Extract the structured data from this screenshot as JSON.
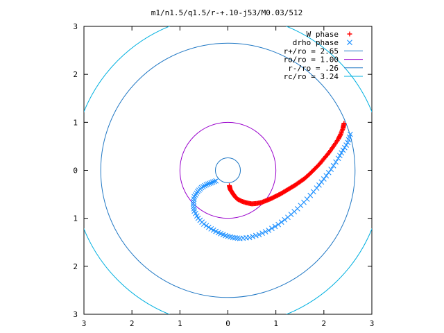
{
  "chart_data": {
    "type": "scatter",
    "title": "m1/n1.5/q1.5/r-+.10-j53/M0.03/512",
    "xlabel": "",
    "ylabel": "",
    "xlim": [
      -3,
      3
    ],
    "ylim": [
      -3,
      3
    ],
    "x_ticks": [
      "3",
      "2",
      "1",
      "0",
      "1",
      "2",
      "3"
    ],
    "y_ticks": [
      "3",
      "2",
      "1",
      "0",
      "1",
      "2",
      "3"
    ],
    "grid": false,
    "legend_position": "top-right",
    "series": [
      {
        "name": "W phase",
        "kind": "points",
        "marker": "plus",
        "color": "#ff0000",
        "x": [
          0.03,
          0.05,
          0.1,
          0.15,
          0.2,
          0.3,
          0.4,
          0.5,
          0.6,
          0.7,
          0.8,
          0.9,
          1.0,
          1.1,
          1.2,
          1.3,
          1.4,
          1.5,
          1.6,
          1.7,
          1.8,
          1.9,
          2.0,
          2.1,
          2.2,
          2.3,
          2.35,
          2.4,
          2.42
        ],
        "y": [
          -0.32,
          -0.4,
          -0.48,
          -0.55,
          -0.6,
          -0.65,
          -0.68,
          -0.7,
          -0.69,
          -0.67,
          -0.63,
          -0.59,
          -0.54,
          -0.49,
          -0.43,
          -0.37,
          -0.31,
          -0.24,
          -0.17,
          -0.08,
          0.02,
          0.12,
          0.24,
          0.36,
          0.5,
          0.65,
          0.75,
          0.88,
          0.98
        ]
      },
      {
        "name": "drho phase",
        "kind": "points",
        "marker": "x",
        "color": "#1e90ff",
        "x": [
          -0.25,
          -0.35,
          -0.45,
          -0.55,
          -0.63,
          -0.7,
          -0.72,
          -0.7,
          -0.62,
          -0.5,
          -0.35,
          -0.2,
          -0.05,
          0.1,
          0.25,
          0.45,
          0.65,
          0.85,
          1.05,
          1.25,
          1.45,
          1.65,
          1.85,
          2.0,
          2.15,
          2.3,
          2.4,
          2.5,
          2.55
        ],
        "y": [
          -0.22,
          -0.26,
          -0.3,
          -0.36,
          -0.44,
          -0.55,
          -0.7,
          -0.85,
          -1.0,
          -1.12,
          -1.22,
          -1.3,
          -1.36,
          -1.4,
          -1.42,
          -1.4,
          -1.34,
          -1.25,
          -1.13,
          -0.98,
          -0.8,
          -0.6,
          -0.37,
          -0.18,
          0.02,
          0.25,
          0.42,
          0.58,
          0.75
        ]
      },
      {
        "name": "r+/ro = 2.65",
        "kind": "circle",
        "radius": 2.65,
        "color": "#1f77c4"
      },
      {
        "name": "ro/ro = 1.00",
        "kind": "circle",
        "radius": 1.0,
        "color": "#9900cc"
      },
      {
        "name": "r-/ro = .26",
        "kind": "circle",
        "radius": 0.26,
        "color": "#1f77c4"
      },
      {
        "name": "rc/ro = 3.24",
        "kind": "circle",
        "radius": 3.24,
        "color": "#00b0e0"
      }
    ]
  }
}
